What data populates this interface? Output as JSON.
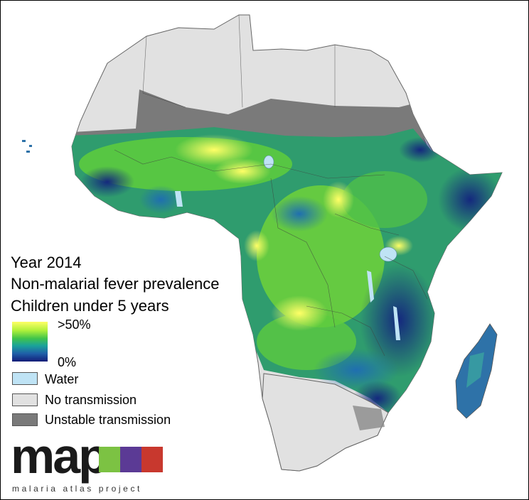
{
  "map": {
    "title_lines": [
      "Year 2014",
      "Non-malarial fever prevalence",
      "Children under 5 years"
    ],
    "legend": {
      "gradient_max_label": ">50%",
      "gradient_min_label": "0%",
      "gradient_colors": [
        "#ffff66",
        "#aef03a",
        "#40c44a",
        "#1aa39a",
        "#1f5fa8",
        "#121c78"
      ],
      "categories": [
        {
          "label": "Water",
          "color": "#bfe3f5"
        },
        {
          "label": "No transmission",
          "color": "#e1e1e1"
        },
        {
          "label": "Unstable transmission",
          "color": "#7a7a7a"
        }
      ]
    }
  },
  "logo": {
    "wordmark": "map",
    "tagline": "malaria atlas project",
    "box_colors": [
      "#7cc243",
      "#5b3a95",
      "#c8382e"
    ]
  }
}
